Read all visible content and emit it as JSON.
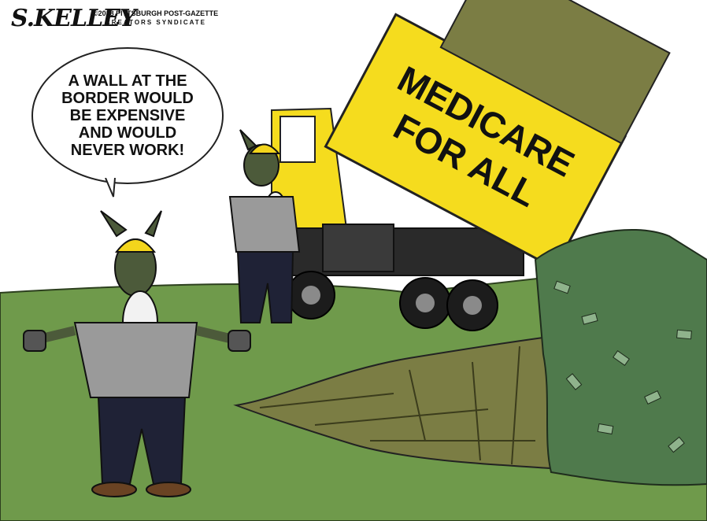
{
  "signature": "S.KELLEY",
  "copyright": {
    "line1": "©2018 PITTSBURGH POST-GAZETTE",
    "line2": "CREATORS SYNDICATE"
  },
  "speech_bubble": {
    "text": "A WALL AT THE BORDER WOULD BE EXPENSIVE AND WOULD NEVER WORK!"
  },
  "truck_sign": {
    "line1": "MEDICARE",
    "line2": "FOR ALL"
  },
  "colors": {
    "sky": "#ffffff",
    "grass": "#6f9a4b",
    "truck_yellow": "#f5dc1e",
    "hard_hat": "#f3d51c",
    "shirt": "#9a9a9a",
    "pants": "#1f2236",
    "money_green": "#4f7a4c",
    "trench": "#7b7d44"
  }
}
